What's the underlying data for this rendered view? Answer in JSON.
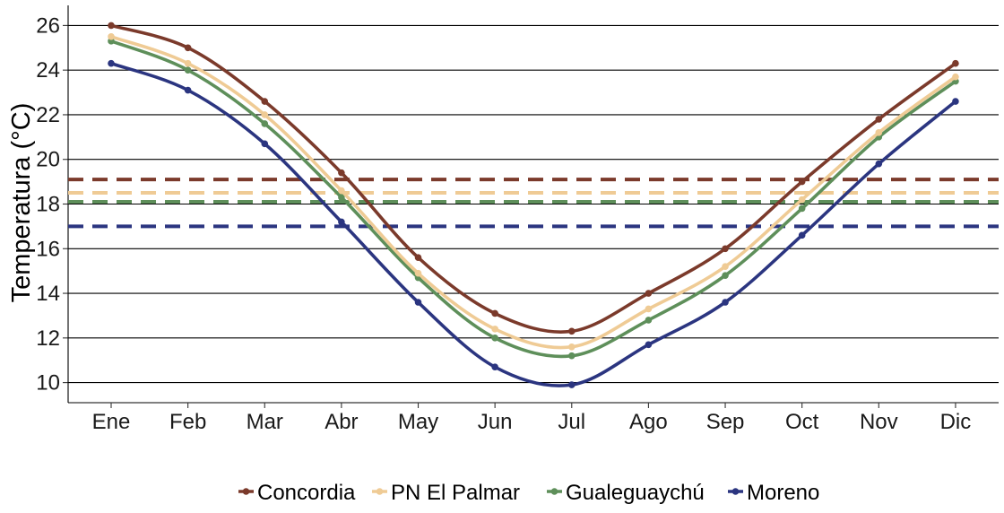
{
  "chart_data": {
    "type": "line",
    "title": "",
    "xlabel": "",
    "ylabel": "Temperatura (°C)",
    "categories": [
      "Ene",
      "Feb",
      "Mar",
      "Abr",
      "May",
      "Jun",
      "Jul",
      "Ago",
      "Sep",
      "Oct",
      "Nov",
      "Dic"
    ],
    "ylim": [
      9.1,
      26.9
    ],
    "yticks": [
      10,
      12,
      14,
      16,
      18,
      20,
      22,
      24,
      26
    ],
    "grid": "horizontal",
    "legend_position": "bottom",
    "series": [
      {
        "name": "Concordia",
        "color": "#7B3A2B",
        "values": [
          26.0,
          25.0,
          22.6,
          19.4,
          15.6,
          13.1,
          12.3,
          14.0,
          16.0,
          19.0,
          21.8,
          24.3
        ],
        "mean": 19.1
      },
      {
        "name": "PN El Palmar",
        "color": "#EFCB95",
        "values": [
          25.5,
          24.3,
          22.0,
          18.6,
          14.9,
          12.4,
          11.6,
          13.3,
          15.2,
          18.2,
          21.2,
          23.7
        ],
        "mean": 18.5
      },
      {
        "name": "Gualeguaychú",
        "color": "#5E8F5A",
        "values": [
          25.3,
          24.0,
          21.6,
          18.3,
          14.7,
          12.0,
          11.2,
          12.8,
          14.8,
          17.8,
          21.0,
          23.5
        ],
        "mean": 18.1
      },
      {
        "name": "Moreno",
        "color": "#2B3580",
        "values": [
          24.3,
          23.1,
          20.7,
          17.2,
          13.6,
          10.7,
          9.9,
          11.7,
          13.6,
          16.6,
          19.8,
          22.6
        ],
        "mean": 17.0
      }
    ]
  }
}
